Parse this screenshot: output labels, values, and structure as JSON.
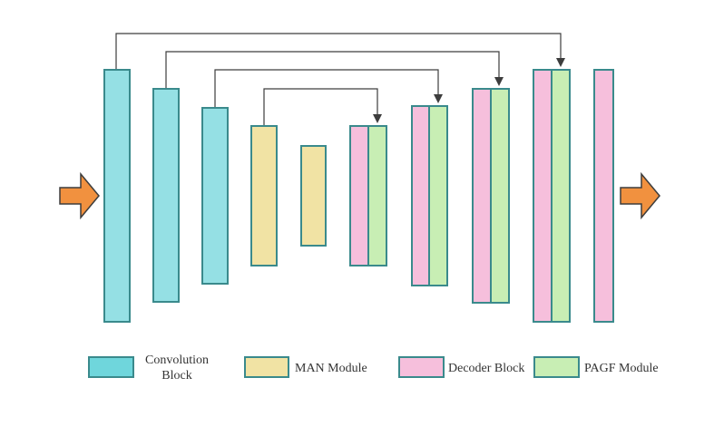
{
  "colors": {
    "convolution": "#95e0e4",
    "man": "#f1e3a4",
    "decoder": "#f6bfdc",
    "pagf": "#c8eeb4",
    "border": "#3a8a8c",
    "arrow": "#f1913f",
    "arrow_border": "#3d3d3d",
    "connector": "#3d3d3d"
  },
  "legend": {
    "convolution": "Convolution Block",
    "man": "MAN Module",
    "decoder": "Decoder Block",
    "pagf": "PAGF Module"
  }
}
